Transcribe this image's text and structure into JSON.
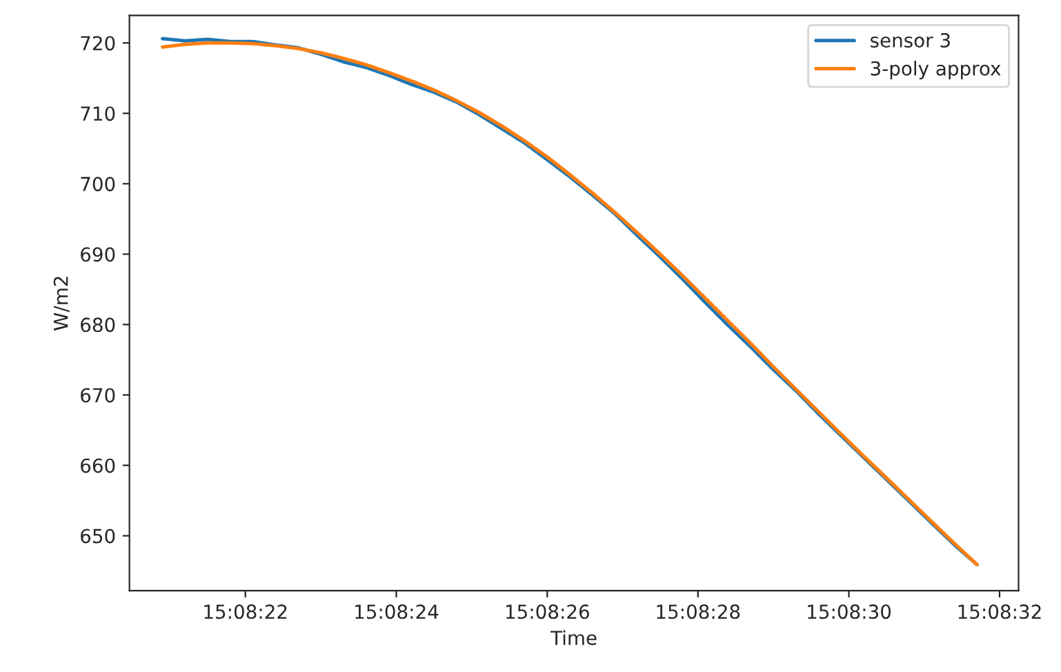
{
  "chart_data": {
    "type": "line",
    "xlabel": "Time",
    "ylabel": "W/m2",
    "x": [
      15.139139,
      15.139222,
      15.139306,
      15.139389,
      15.139472,
      15.139556,
      15.139639,
      15.139722,
      15.139806,
      15.139889,
      15.139972,
      15.140056,
      15.140139,
      15.140222,
      15.140306,
      15.140389,
      15.140472,
      15.140556,
      15.140639,
      15.140722,
      15.140806,
      15.140889,
      15.140972,
      15.141056,
      15.141139,
      15.141222,
      15.141306,
      15.141389,
      15.141472,
      15.141556,
      15.141639,
      15.141722,
      15.141806,
      15.141889,
      15.141972,
      15.142056,
      15.142139
    ],
    "series": [
      {
        "name": "sensor 3",
        "color": "#1f77b4",
        "values": [
          720.6,
          720.3,
          720.5,
          720.2,
          720.2,
          719.7,
          719.3,
          718.4,
          717.3,
          716.5,
          715.4,
          714.1,
          713.0,
          711.6,
          709.8,
          707.8,
          705.8,
          703.4,
          701.0,
          698.4,
          695.7,
          692.6,
          689.6,
          686.4,
          683.1,
          679.9,
          676.8,
          673.6,
          670.6,
          667.3,
          664.2,
          661.1,
          658.0,
          654.9,
          651.8,
          648.7,
          645.9
        ]
      },
      {
        "name": "3-poly approx",
        "color": "#ff7f0e",
        "values": [
          719.4,
          719.8,
          720.0,
          720.0,
          719.9,
          719.6,
          719.2,
          718.6,
          717.8,
          716.9,
          715.8,
          714.6,
          713.3,
          711.8,
          710.1,
          708.2,
          706.1,
          703.8,
          701.3,
          698.7,
          695.9,
          693.0,
          690.0,
          686.9,
          683.7,
          680.5,
          677.3,
          674.0,
          670.8,
          667.6,
          664.4,
          661.3,
          658.2,
          655.1,
          652.0,
          648.9,
          645.9
        ]
      }
    ],
    "xlim": [
      15.139017,
      15.142292
    ],
    "xticks": [
      {
        "value": 15.139444,
        "label": "15:08:22"
      },
      {
        "value": 15.14,
        "label": "15:08:24"
      },
      {
        "value": 15.140556,
        "label": "15:08:26"
      },
      {
        "value": 15.141111,
        "label": "15:08:28"
      },
      {
        "value": 15.141667,
        "label": "15:08:30"
      },
      {
        "value": 15.142222,
        "label": "15:08:32"
      }
    ],
    "ylim": [
      642.2,
      723.9
    ],
    "yticks": [
      650,
      660,
      670,
      680,
      690,
      700,
      710,
      720
    ],
    "grid": false,
    "legend": "top right"
  }
}
